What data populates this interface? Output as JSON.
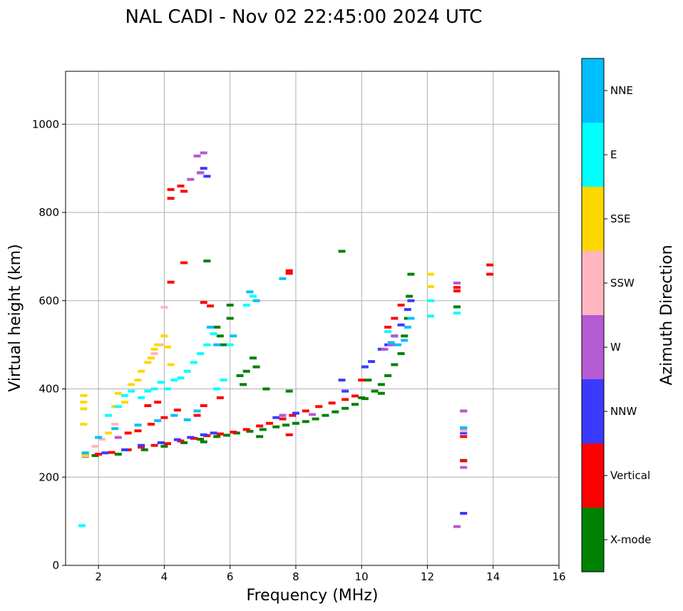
{
  "chart_data": {
    "type": "scatter",
    "title": "NAL CADI - Nov 02 22:45:00 2024 UTC",
    "xlabel": "Frequency (MHz)",
    "ylabel": "Virtual height (km)",
    "xlim": [
      1,
      16
    ],
    "ylim": [
      0,
      1120
    ],
    "xticks": [
      2,
      4,
      6,
      8,
      10,
      12,
      14,
      16
    ],
    "yticks": [
      0,
      200,
      400,
      600,
      800,
      1000
    ],
    "grid": true,
    "colorbar": {
      "title": "Azimuth Direction",
      "categories": [
        {
          "name": "X-mode",
          "color": "#008000"
        },
        {
          "name": "Vertical",
          "color": "#ff0000"
        },
        {
          "name": "NNW",
          "color": "#3a3aff"
        },
        {
          "name": "W",
          "color": "#b45ad2"
        },
        {
          "name": "SSW",
          "color": "#ffb6c1"
        },
        {
          "name": "SSE",
          "color": "#ffd700"
        },
        {
          "name": "E",
          "color": "#00ffff"
        },
        {
          "name": "NNE",
          "color": "#00bfff"
        }
      ]
    },
    "series": [
      {
        "name": "X-mode",
        "points": [
          [
            1.6,
            247
          ],
          [
            1.9,
            249
          ],
          [
            2.6,
            252
          ],
          [
            3.4,
            262
          ],
          [
            4.0,
            270
          ],
          [
            4.6,
            278
          ],
          [
            5.1,
            286
          ],
          [
            5.6,
            292
          ],
          [
            5.9,
            295
          ],
          [
            6.2,
            300
          ],
          [
            6.6,
            304
          ],
          [
            7.0,
            308
          ],
          [
            7.4,
            314
          ],
          [
            7.7,
            318
          ],
          [
            8.0,
            322
          ],
          [
            8.3,
            326
          ],
          [
            8.6,
            332
          ],
          [
            8.9,
            340
          ],
          [
            9.2,
            348
          ],
          [
            9.5,
            356
          ],
          [
            9.8,
            365
          ],
          [
            10.1,
            378
          ],
          [
            10.4,
            395
          ],
          [
            10.6,
            410
          ],
          [
            10.8,
            430
          ],
          [
            11.0,
            455
          ],
          [
            11.2,
            480
          ],
          [
            11.3,
            520
          ],
          [
            11.4,
            560
          ],
          [
            11.45,
            610
          ],
          [
            11.5,
            660
          ],
          [
            5.3,
            690
          ],
          [
            5.6,
            540
          ],
          [
            5.7,
            520
          ],
          [
            5.8,
            500
          ],
          [
            6.0,
            560
          ],
          [
            6.0,
            590
          ],
          [
            6.3,
            430
          ],
          [
            6.4,
            410
          ],
          [
            6.5,
            440
          ],
          [
            6.7,
            470
          ],
          [
            6.8,
            450
          ],
          [
            7.1,
            400
          ],
          [
            7.8,
            395
          ],
          [
            9.4,
            712
          ],
          [
            10.0,
            380
          ],
          [
            10.2,
            420
          ],
          [
            10.6,
            390
          ],
          [
            12.9,
            586
          ],
          [
            13.1,
            238
          ],
          [
            5.2,
            280
          ],
          [
            6.9,
            292
          ]
        ]
      },
      {
        "name": "Vertical",
        "points": [
          [
            1.6,
            250
          ],
          [
            2.0,
            252
          ],
          [
            2.4,
            256
          ],
          [
            2.9,
            262
          ],
          [
            3.3,
            268
          ],
          [
            3.7,
            272
          ],
          [
            4.1,
            276
          ],
          [
            4.5,
            282
          ],
          [
            4.9,
            288
          ],
          [
            5.3,
            294
          ],
          [
            5.7,
            298
          ],
          [
            6.1,
            302
          ],
          [
            6.5,
            308
          ],
          [
            6.9,
            316
          ],
          [
            7.2,
            322
          ],
          [
            7.6,
            332
          ],
          [
            7.9,
            340
          ],
          [
            8.3,
            350
          ],
          [
            8.7,
            360
          ],
          [
            9.1,
            368
          ],
          [
            9.5,
            376
          ],
          [
            9.8,
            384
          ],
          [
            10.0,
            420
          ],
          [
            10.8,
            540
          ],
          [
            11.0,
            560
          ],
          [
            11.2,
            590
          ],
          [
            4.2,
            832
          ],
          [
            4.2,
            852
          ],
          [
            4.6,
            848
          ],
          [
            4.5,
            860
          ],
          [
            4.2,
            642
          ],
          [
            4.6,
            686
          ],
          [
            7.8,
            662
          ],
          [
            7.8,
            668
          ],
          [
            12.9,
            622
          ],
          [
            12.9,
            630
          ],
          [
            13.9,
            660
          ],
          [
            13.9,
            681
          ],
          [
            13.1,
            292
          ],
          [
            13.1,
            237
          ],
          [
            13.1,
            350
          ],
          [
            2.9,
            300
          ],
          [
            3.2,
            305
          ],
          [
            3.6,
            320
          ],
          [
            4.0,
            335
          ],
          [
            4.4,
            352
          ],
          [
            5.0,
            340
          ],
          [
            5.2,
            362
          ],
          [
            5.7,
            380
          ],
          [
            7.8,
            296
          ],
          [
            5.2,
            596
          ],
          [
            5.4,
            588
          ],
          [
            3.5,
            362
          ],
          [
            3.8,
            370
          ]
        ]
      },
      {
        "name": "NNW",
        "points": [
          [
            1.6,
            253
          ],
          [
            2.2,
            255
          ],
          [
            2.8,
            262
          ],
          [
            3.3,
            272
          ],
          [
            3.9,
            278
          ],
          [
            4.4,
            285
          ],
          [
            4.8,
            290
          ],
          [
            5.2,
            296
          ],
          [
            5.5,
            300
          ],
          [
            7.4,
            335
          ],
          [
            7.6,
            340
          ],
          [
            8.0,
            345
          ],
          [
            9.4,
            420
          ],
          [
            10.1,
            450
          ],
          [
            10.3,
            462
          ],
          [
            10.6,
            490
          ],
          [
            10.8,
            500
          ],
          [
            11.0,
            520
          ],
          [
            11.2,
            545
          ],
          [
            11.4,
            580
          ],
          [
            11.5,
            600
          ],
          [
            5.1,
            890
          ],
          [
            5.3,
            882
          ],
          [
            5.2,
            900
          ],
          [
            13.1,
            300
          ],
          [
            13.1,
            310
          ],
          [
            13.1,
            118
          ],
          [
            9.5,
            395
          ]
        ]
      },
      {
        "name": "W",
        "points": [
          [
            5.0,
            928
          ],
          [
            5.2,
            935
          ],
          [
            5.1,
            890
          ],
          [
            4.8,
            875
          ],
          [
            12.9,
            88
          ],
          [
            13.1,
            222
          ],
          [
            13.1,
            350
          ],
          [
            10.7,
            490
          ],
          [
            10.9,
            500
          ],
          [
            11.0,
            520
          ],
          [
            8.5,
            342
          ],
          [
            7.6,
            340
          ],
          [
            2.6,
            290
          ],
          [
            12.9,
            640
          ]
        ]
      },
      {
        "name": "SSW",
        "points": [
          [
            1.6,
            248
          ],
          [
            1.9,
            270
          ],
          [
            2.1,
            286
          ],
          [
            2.5,
            320
          ],
          [
            3.7,
            480
          ],
          [
            3.9,
            500
          ],
          [
            4.0,
            585
          ],
          [
            13.1,
            305
          ]
        ]
      },
      {
        "name": "SSE",
        "points": [
          [
            1.55,
            385
          ],
          [
            1.55,
            370
          ],
          [
            1.55,
            355
          ],
          [
            1.55,
            320
          ],
          [
            1.6,
            250
          ],
          [
            2.3,
            300
          ],
          [
            2.5,
            360
          ],
          [
            2.6,
            390
          ],
          [
            2.8,
            370
          ],
          [
            3.0,
            410
          ],
          [
            3.2,
            420
          ],
          [
            3.3,
            440
          ],
          [
            3.5,
            460
          ],
          [
            3.6,
            470
          ],
          [
            3.7,
            490
          ],
          [
            3.8,
            500
          ],
          [
            4.0,
            520
          ],
          [
            4.1,
            495
          ],
          [
            4.2,
            455
          ],
          [
            12.1,
            632
          ],
          [
            12.1,
            660
          ]
        ]
      },
      {
        "name": "E",
        "points": [
          [
            1.5,
            90
          ],
          [
            2.3,
            340
          ],
          [
            2.6,
            360
          ],
          [
            2.8,
            385
          ],
          [
            3.0,
            395
          ],
          [
            3.3,
            380
          ],
          [
            3.5,
            395
          ],
          [
            3.7,
            400
          ],
          [
            3.9,
            415
          ],
          [
            4.1,
            400
          ],
          [
            4.3,
            420
          ],
          [
            4.5,
            425
          ],
          [
            4.7,
            440
          ],
          [
            4.9,
            460
          ],
          [
            5.1,
            480
          ],
          [
            5.3,
            500
          ],
          [
            5.5,
            525
          ],
          [
            5.6,
            400
          ],
          [
            5.8,
            420
          ],
          [
            6.0,
            500
          ],
          [
            6.5,
            590
          ],
          [
            6.7,
            610
          ],
          [
            12.1,
            565
          ],
          [
            12.1,
            600
          ],
          [
            12.9,
            572
          ],
          [
            10.8,
            530
          ]
        ]
      },
      {
        "name": "NNE",
        "points": [
          [
            1.6,
            255
          ],
          [
            2.0,
            290
          ],
          [
            2.5,
            310
          ],
          [
            3.2,
            318
          ],
          [
            3.8,
            328
          ],
          [
            4.3,
            340
          ],
          [
            4.7,
            330
          ],
          [
            5.0,
            350
          ],
          [
            5.4,
            540
          ],
          [
            5.6,
            500
          ],
          [
            6.1,
            520
          ],
          [
            6.6,
            620
          ],
          [
            6.8,
            600
          ],
          [
            7.6,
            650
          ],
          [
            10.9,
            505
          ],
          [
            11.1,
            500
          ],
          [
            11.3,
            510
          ],
          [
            11.4,
            540
          ],
          [
            11.5,
            560
          ],
          [
            13.1,
            312
          ]
        ]
      }
    ]
  }
}
